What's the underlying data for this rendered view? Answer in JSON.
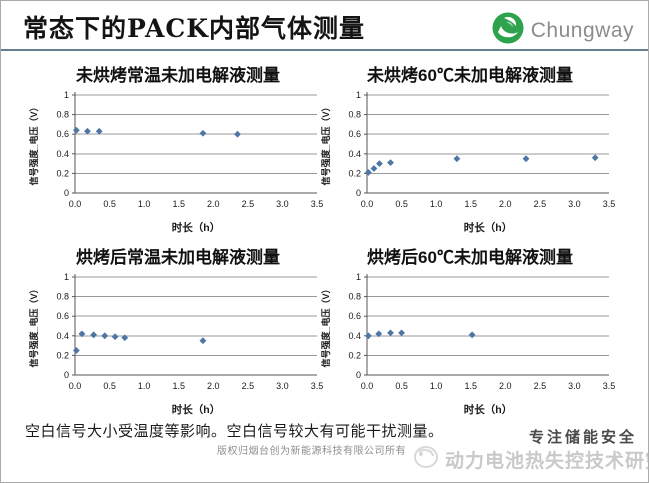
{
  "slide": {
    "title": "常态下的PACK内部气体测量",
    "brand": "Chungway",
    "footer_note": "空白信号大小受温度等影响。空白信号较大有可能干扰测量。",
    "watermark": "版权归烟台创为新能源科技有限公司所有",
    "stamp_line1": "专注储能安全",
    "stamp_line2": "动力电池热失控技术研究"
  },
  "colors": {
    "marker": "#4e76a4",
    "grid": "#999999",
    "axis": "#555555",
    "text": "#1a1a1a",
    "brand_green": "#2ea24c",
    "divider": "#64808e"
  },
  "chart_data": [
    {
      "type": "scatter",
      "title": "未烘烤常温未加电解液测量",
      "xlabel": "时长（h）",
      "ylabel": "信号强度_电压（V）",
      "xlim": [
        0,
        3.5
      ],
      "ylim": [
        0,
        1
      ],
      "xticks": [
        "0.0",
        "0.5",
        "1.0",
        "1.5",
        "2.0",
        "2.5",
        "3.0",
        "3.5"
      ],
      "yticks": [
        "0",
        "0.2",
        "0.4",
        "0.6",
        "0.8",
        "1"
      ],
      "grid": "horizontal",
      "legend": "none",
      "points": [
        [
          0.02,
          0.64
        ],
        [
          0.18,
          0.63
        ],
        [
          0.35,
          0.63
        ],
        [
          1.85,
          0.61
        ],
        [
          2.35,
          0.6
        ]
      ]
    },
    {
      "type": "scatter",
      "title": "未烘烤60℃未加电解液测量",
      "xlabel": "时长（h）",
      "ylabel": "信号强度_电压（V）",
      "xlim": [
        0,
        3.5
      ],
      "ylim": [
        0,
        1
      ],
      "xticks": [
        "0.0",
        "0.5",
        "1.0",
        "1.5",
        "2.0",
        "2.5",
        "3.0",
        "3.5"
      ],
      "yticks": [
        "0",
        "0.2",
        "0.4",
        "0.6",
        "0.8",
        "1"
      ],
      "grid": "horizontal",
      "legend": "none",
      "points": [
        [
          0.02,
          0.21
        ],
        [
          0.1,
          0.25
        ],
        [
          0.18,
          0.3
        ],
        [
          0.34,
          0.31
        ],
        [
          1.3,
          0.35
        ],
        [
          2.3,
          0.35
        ],
        [
          3.3,
          0.36
        ]
      ]
    },
    {
      "type": "scatter",
      "title": "烘烤后常温未加电解液测量",
      "xlabel": "时长（h）",
      "ylabel": "信号强度_电压（V）",
      "xlim": [
        0,
        3.5
      ],
      "ylim": [
        0,
        1
      ],
      "xticks": [
        "0.0",
        "0.5",
        "1.0",
        "1.5",
        "2.0",
        "2.5",
        "3.0",
        "3.5"
      ],
      "yticks": [
        "0",
        "0.2",
        "0.4",
        "0.6",
        "0.8",
        "1"
      ],
      "grid": "horizontal",
      "legend": "none",
      "points": [
        [
          0.02,
          0.25
        ],
        [
          0.1,
          0.42
        ],
        [
          0.27,
          0.41
        ],
        [
          0.43,
          0.4
        ],
        [
          0.58,
          0.39
        ],
        [
          0.72,
          0.38
        ],
        [
          1.85,
          0.35
        ]
      ]
    },
    {
      "type": "scatter",
      "title": "烘烤后60℃未加电解液测量",
      "xlabel": "时长（h）",
      "ylabel": "信号强度_电压（V）",
      "xlim": [
        0,
        3.5
      ],
      "ylim": [
        0,
        1
      ],
      "xticks": [
        "0.0",
        "0.5",
        "1.0",
        "1.5",
        "2.0",
        "2.5",
        "3.0",
        "3.5"
      ],
      "yticks": [
        "0",
        "0.2",
        "0.4",
        "0.6",
        "0.8",
        "1"
      ],
      "grid": "horizontal",
      "legend": "none",
      "points": [
        [
          0.02,
          0.4
        ],
        [
          0.17,
          0.42
        ],
        [
          0.34,
          0.43
        ],
        [
          0.5,
          0.43
        ],
        [
          1.52,
          0.41
        ]
      ]
    }
  ]
}
